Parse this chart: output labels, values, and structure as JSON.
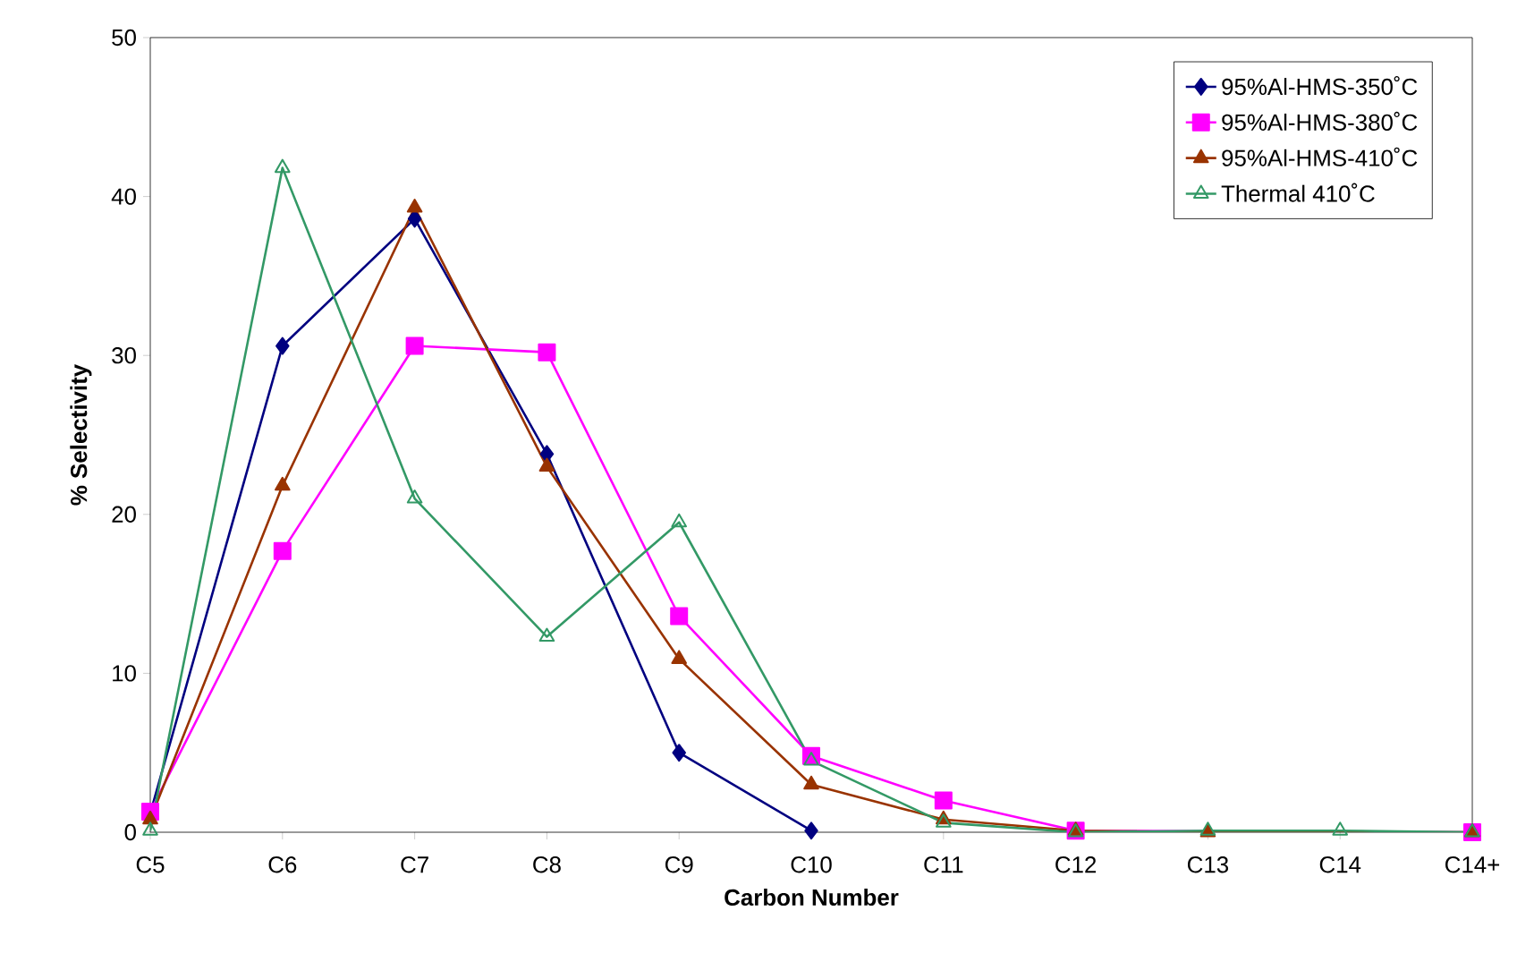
{
  "chart_data": {
    "type": "line",
    "xlabel": "Carbon Number",
    "ylabel": "% Selectivity",
    "categories": [
      "C5",
      "C6",
      "C7",
      "C8",
      "C9",
      "C10",
      "C11",
      "C12",
      "C13",
      "C14",
      "C14+"
    ],
    "ylim": [
      0,
      50
    ],
    "yticks": [
      0,
      10,
      20,
      30,
      40,
      50
    ],
    "grid": false,
    "legend": "top right",
    "series": [
      {
        "name": "95%Al-HMS-350˚C",
        "color": "#000080",
        "marker": "diamond",
        "values": [
          1.2,
          30.6,
          38.6,
          23.8,
          5.0,
          0.1,
          null,
          null,
          null,
          null,
          null
        ]
      },
      {
        "name": "95%Al-HMS-380˚C",
        "color": "#ff00ff",
        "marker": "square",
        "values": [
          1.3,
          17.7,
          30.6,
          30.2,
          13.6,
          4.8,
          2.0,
          0.1,
          null,
          null,
          0
        ]
      },
      {
        "name": "95%Al-HMS-410˚C",
        "color": "#993300",
        "marker": "triangle",
        "values": [
          0.8,
          21.8,
          39.3,
          23.0,
          10.9,
          3.0,
          0.8,
          0.1,
          0,
          null,
          0
        ]
      },
      {
        "name": "Thermal 410˚C",
        "color": "#339966",
        "marker": "triangle",
        "values": [
          0.1,
          41.8,
          21.0,
          12.3,
          19.5,
          4.5,
          0.6,
          0,
          0.1,
          0.1,
          0
        ]
      }
    ]
  }
}
